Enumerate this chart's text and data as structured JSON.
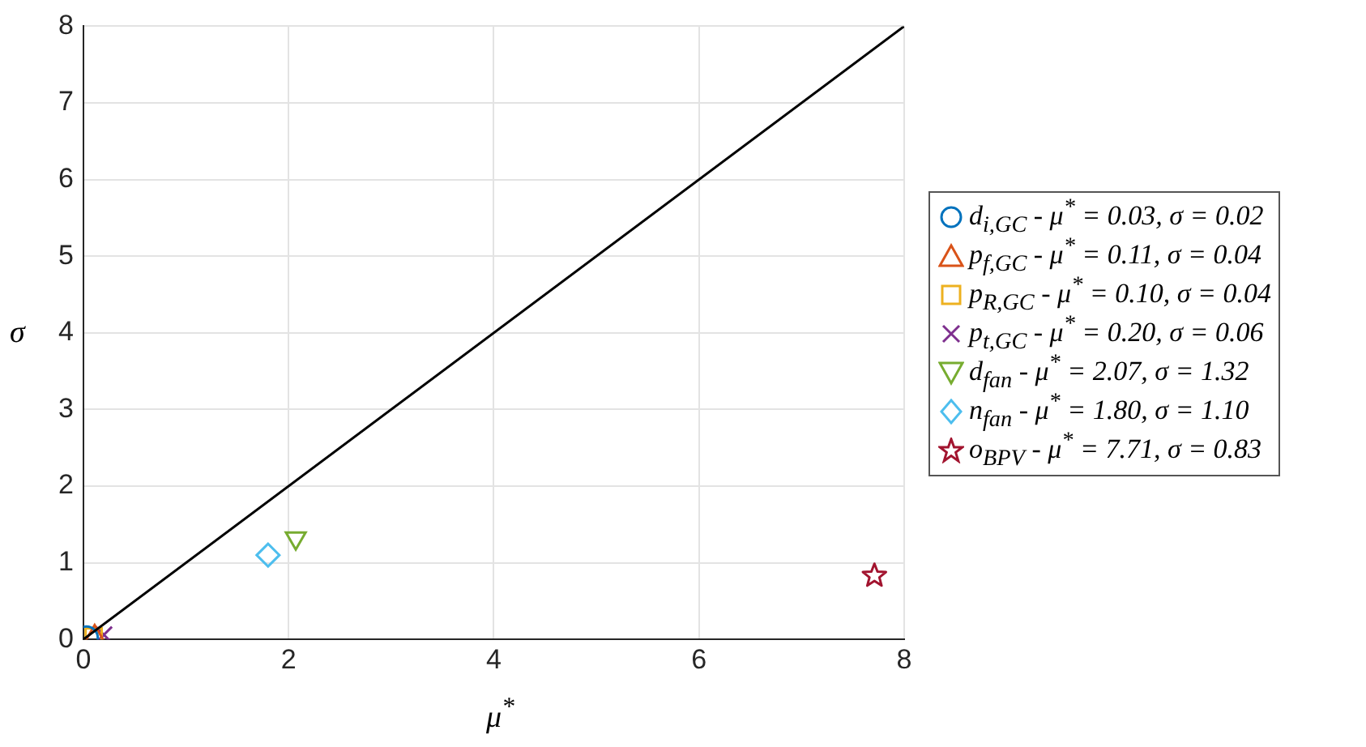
{
  "chart_data": {
    "type": "scatter",
    "xlabel": "μ$^{*}$",
    "ylabel": "σ",
    "xlim": [
      0,
      8
    ],
    "ylim": [
      0,
      8
    ],
    "xticks": [
      0,
      2,
      4,
      6,
      8
    ],
    "yticks": [
      0,
      1,
      2,
      3,
      4,
      5,
      6,
      7,
      8
    ],
    "grid": true,
    "legend": "right",
    "series": [
      {
        "type": "line",
        "x": [
          0,
          8
        ],
        "values": [
          0,
          8
        ],
        "color": "#000000",
        "marker": "none"
      },
      {
        "name": "d$_{i,GC}$ - μ$^{*}$ = 0.03, σ = 0.02",
        "x": [
          0.03
        ],
        "values": [
          0.02
        ],
        "color": "#0072bd",
        "marker": "circle"
      },
      {
        "name": "p$_{f,GC}$ - μ$^{*}$ = 0.11, σ = 0.04",
        "x": [
          0.11
        ],
        "values": [
          0.04
        ],
        "color": "#d95319",
        "marker": "triangle"
      },
      {
        "name": "p$_{R,GC}$ - μ$^{*}$ = 0.10, σ = 0.04",
        "x": [
          0.1
        ],
        "values": [
          0.04
        ],
        "color": "#edb120",
        "marker": "square"
      },
      {
        "name": "p$_{t,GC}$ - μ$^{*}$ = 0.20, σ = 0.06",
        "x": [
          0.2
        ],
        "values": [
          0.06
        ],
        "color": "#7e2f8e",
        "marker": "cross"
      },
      {
        "name": "d$_{fan}$ - μ$^{*}$ = 2.07, σ = 1.32",
        "x": [
          2.07
        ],
        "values": [
          1.32
        ],
        "color": "#77ac30",
        "marker": "triangle-down"
      },
      {
        "name": "n$_{fan}$ - μ$^{*}$ = 1.80, σ = 1.10",
        "x": [
          1.8
        ],
        "values": [
          1.1
        ],
        "color": "#4dbeee",
        "marker": "diamond"
      },
      {
        "name": "o$_{BPV}$ - μ$^{*}$ = 7.71, σ = 0.83",
        "x": [
          7.71
        ],
        "values": [
          0.83
        ],
        "color": "#a2142f",
        "marker": "star"
      }
    ]
  }
}
